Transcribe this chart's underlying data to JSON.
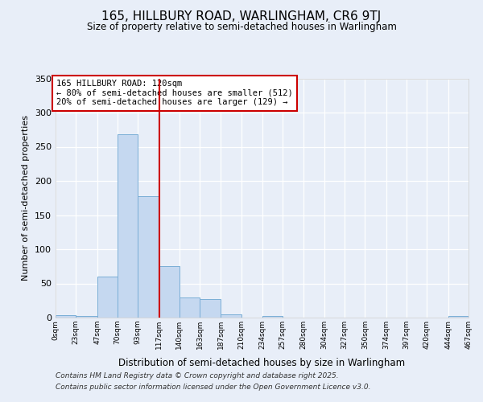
{
  "title": "165, HILLBURY ROAD, WARLINGHAM, CR6 9TJ",
  "subtitle": "Size of property relative to semi-detached houses in Warlingham",
  "xlabel": "Distribution of semi-detached houses by size in Warlingham",
  "ylabel": "Number of semi-detached properties",
  "bar_values": [
    3,
    2,
    60,
    268,
    178,
    75,
    30,
    27,
    5,
    0,
    2,
    0,
    0,
    0,
    0,
    0,
    0,
    0,
    0,
    2
  ],
  "bin_labels": [
    "0sqm",
    "23sqm",
    "47sqm",
    "70sqm",
    "93sqm",
    "117sqm",
    "140sqm",
    "163sqm",
    "187sqm",
    "210sqm",
    "234sqm",
    "257sqm",
    "280sqm",
    "304sqm",
    "327sqm",
    "350sqm",
    "374sqm",
    "397sqm",
    "420sqm",
    "444sqm",
    "467sqm"
  ],
  "bin_edges": [
    0,
    23,
    47,
    70,
    93,
    117,
    140,
    163,
    187,
    210,
    234,
    257,
    280,
    304,
    327,
    350,
    374,
    397,
    420,
    444,
    467
  ],
  "bar_color": "#c5d8f0",
  "bar_edge_color": "#7aaed6",
  "vline_x": 117,
  "vline_color": "#cc0000",
  "annotation_title": "165 HILLBURY ROAD: 120sqm",
  "annotation_line1": "← 80% of semi-detached houses are smaller (512)",
  "annotation_line2": "20% of semi-detached houses are larger (129) →",
  "annotation_box_color": "#cc0000",
  "ylim": [
    0,
    350
  ],
  "yticks": [
    0,
    50,
    100,
    150,
    200,
    250,
    300,
    350
  ],
  "bg_color": "#e8eef8",
  "grid_color": "#ffffff",
  "footer_line1": "Contains HM Land Registry data © Crown copyright and database right 2025.",
  "footer_line2": "Contains public sector information licensed under the Open Government Licence v3.0."
}
